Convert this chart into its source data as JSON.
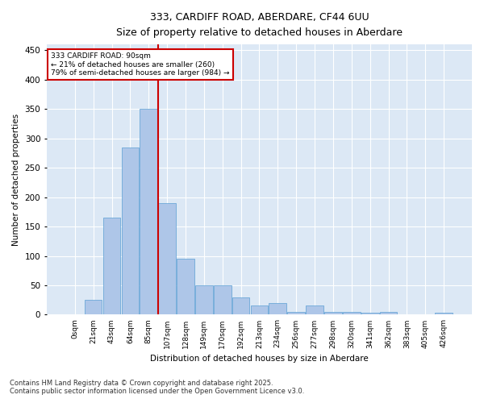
{
  "title1": "333, CARDIFF ROAD, ABERDARE, CF44 6UU",
  "title2": "Size of property relative to detached houses in Aberdare",
  "xlabel": "Distribution of detached houses by size in Aberdare",
  "ylabel": "Number of detached properties",
  "footnote1": "Contains HM Land Registry data © Crown copyright and database right 2025.",
  "footnote2": "Contains public sector information licensed under the Open Government Licence v3.0.",
  "annotation_line1": "333 CARDIFF ROAD: 90sqm",
  "annotation_line2": "← 21% of detached houses are smaller (260)",
  "annotation_line3": "79% of semi-detached houses are larger (984) →",
  "bar_color": "#aec6e8",
  "bar_edge_color": "#5a9fd4",
  "vline_color": "#cc0000",
  "annotation_box_color": "#cc0000",
  "categories": [
    "0sqm",
    "21sqm",
    "43sqm",
    "64sqm",
    "85sqm",
    "107sqm",
    "128sqm",
    "149sqm",
    "170sqm",
    "192sqm",
    "213sqm",
    "234sqm",
    "256sqm",
    "277sqm",
    "298sqm",
    "320sqm",
    "341sqm",
    "362sqm",
    "383sqm",
    "405sqm",
    "426sqm"
  ],
  "values": [
    0,
    25,
    165,
    285,
    350,
    190,
    95,
    50,
    50,
    30,
    15,
    20,
    5,
    15,
    5,
    5,
    3,
    5,
    0,
    0,
    3
  ],
  "vline_x": 4.5,
  "ylim": [
    0,
    460
  ],
  "yticks": [
    0,
    50,
    100,
    150,
    200,
    250,
    300,
    350,
    400,
    450
  ],
  "fig_width": 6.0,
  "fig_height": 5.0,
  "dpi": 100
}
